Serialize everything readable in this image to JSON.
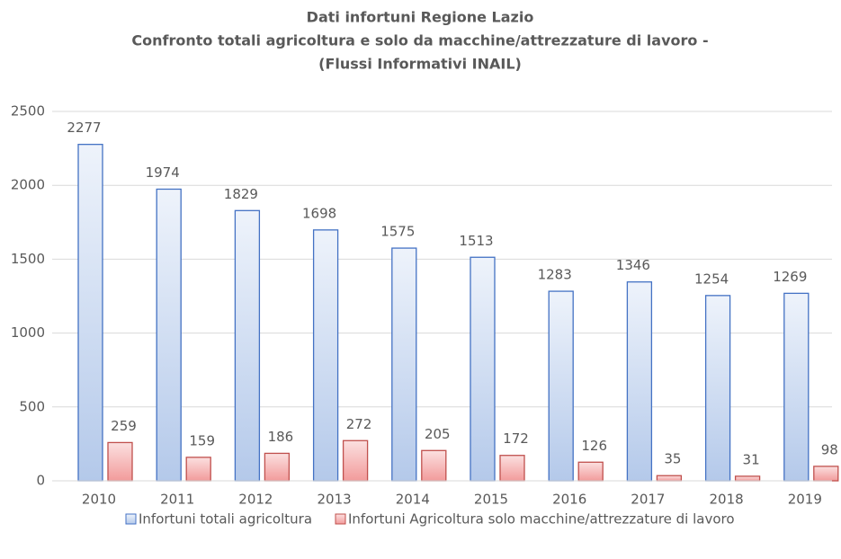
{
  "chart_data": {
    "type": "bar",
    "title": [
      "Dati infortuni Regione Lazio",
      "Confronto totali agricoltura e solo da macchine/attrezzature di lavoro -",
      "(Flussi Informativi INAIL)"
    ],
    "categories": [
      "2010",
      "2011",
      "2012",
      "2013",
      "2014",
      "2015",
      "2016",
      "2017",
      "2018",
      "2019"
    ],
    "series": [
      {
        "name": "Infortuni totali agricoltura",
        "color": "#4472c4",
        "values": [
          2277,
          1974,
          1829,
          1698,
          1575,
          1513,
          1283,
          1346,
          1254,
          1269
        ]
      },
      {
        "name": "Infortuni Agricoltura solo macchine/attrezzature di lavoro",
        "color": "#c0504d",
        "values": [
          259,
          159,
          186,
          272,
          205,
          172,
          126,
          35,
          31,
          98
        ]
      }
    ],
    "ylim": [
      0,
      2500
    ],
    "yticks": [
      0,
      500,
      1000,
      1500,
      2000,
      2500
    ],
    "grid": true,
    "legend": "bottom"
  }
}
